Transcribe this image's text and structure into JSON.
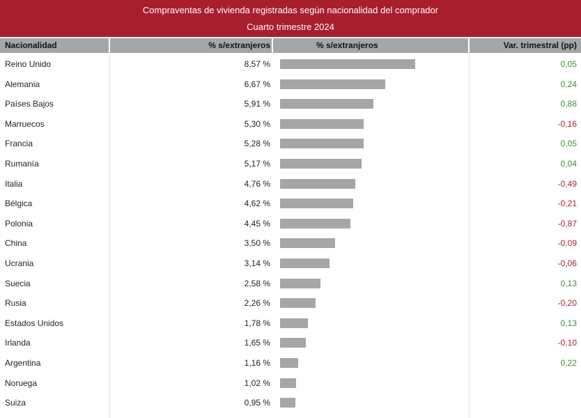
{
  "chart_data": {
    "type": "bar",
    "title": "Compraventas de vivienda registradas según nacionalidad del comprador",
    "subtitle": "Cuarto trimestre 2024",
    "columns": [
      "Nacionalidad",
      "% s/extranjeros",
      "% s/extranjeros",
      "Var. trimestral (pp)"
    ],
    "xlim": [
      0,
      9.1
    ],
    "colors": {
      "bar": "#a6a6a6",
      "header_bg": "#a81e2d",
      "positive": "#3a8f3a",
      "negative": "#a81e2d"
    },
    "rows": [
      {
        "nacionalidad": "Reino Unido",
        "value": 8.57,
        "pct_label": "8,57 %",
        "var": 0.05,
        "var_label": "0,05"
      },
      {
        "nacionalidad": "Alemania",
        "value": 6.67,
        "pct_label": "6,67 %",
        "var": 0.24,
        "var_label": "0,24"
      },
      {
        "nacionalidad": "Países Bajos",
        "value": 5.91,
        "pct_label": "5,91 %",
        "var": 0.88,
        "var_label": "0,88"
      },
      {
        "nacionalidad": "Marruecos",
        "value": 5.3,
        "pct_label": "5,30 %",
        "var": -0.16,
        "var_label": "-0,16"
      },
      {
        "nacionalidad": "Francia",
        "value": 5.28,
        "pct_label": "5,28 %",
        "var": 0.05,
        "var_label": "0,05"
      },
      {
        "nacionalidad": "Rumanía",
        "value": 5.17,
        "pct_label": "5,17 %",
        "var": 0.04,
        "var_label": "0,04"
      },
      {
        "nacionalidad": "Italia",
        "value": 4.76,
        "pct_label": "4,76 %",
        "var": -0.49,
        "var_label": "-0,49"
      },
      {
        "nacionalidad": "Bélgica",
        "value": 4.62,
        "pct_label": "4,62 %",
        "var": -0.21,
        "var_label": "-0,21"
      },
      {
        "nacionalidad": "Polonia",
        "value": 4.45,
        "pct_label": "4,45 %",
        "var": -0.87,
        "var_label": "-0,87"
      },
      {
        "nacionalidad": "China",
        "value": 3.5,
        "pct_label": "3,50 %",
        "var": -0.09,
        "var_label": "-0,09"
      },
      {
        "nacionalidad": "Ucrania",
        "value": 3.14,
        "pct_label": "3,14 %",
        "var": -0.06,
        "var_label": "-0,06"
      },
      {
        "nacionalidad": "Suecia",
        "value": 2.58,
        "pct_label": "2,58 %",
        "var": 0.13,
        "var_label": "0,13"
      },
      {
        "nacionalidad": "Rusia",
        "value": 2.26,
        "pct_label": "2,26 %",
        "var": -0.2,
        "var_label": "-0,20"
      },
      {
        "nacionalidad": "Estados Unidos",
        "value": 1.78,
        "pct_label": "1,78 %",
        "var": 0.13,
        "var_label": "0,13"
      },
      {
        "nacionalidad": "Irlanda",
        "value": 1.65,
        "pct_label": "1,65 %",
        "var": -0.1,
        "var_label": "-0,10"
      },
      {
        "nacionalidad": "Argentina",
        "value": 1.16,
        "pct_label": "1,16 %",
        "var": 0.22,
        "var_label": "0,22"
      },
      {
        "nacionalidad": "Noruega",
        "value": 1.02,
        "pct_label": "1,02 %",
        "var": null,
        "var_label": ""
      },
      {
        "nacionalidad": "Suiza",
        "value": 0.95,
        "pct_label": "0,95 %",
        "var": null,
        "var_label": ""
      }
    ]
  }
}
